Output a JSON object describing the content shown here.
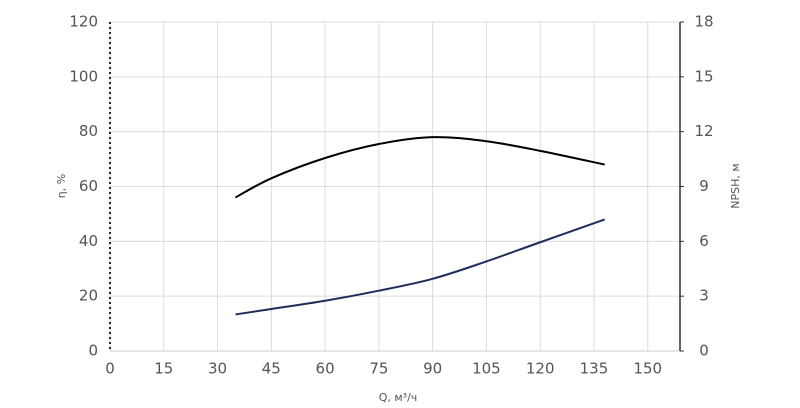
{
  "chart_data": {
    "type": "line",
    "x_label": "Q, м³/ч",
    "y_label": "η, %",
    "y2_label": "NPSH, м",
    "xlim": [
      0,
      159
    ],
    "xticks": [
      0,
      15,
      30,
      45,
      60,
      75,
      90,
      105,
      120,
      135,
      150
    ],
    "ylim": [
      0,
      120
    ],
    "yticks": [
      0,
      20,
      40,
      60,
      80,
      100,
      120
    ],
    "y2lim": [
      0,
      18
    ],
    "y2ticks": [
      0,
      3,
      6,
      9,
      12,
      15,
      18
    ],
    "grid": true,
    "series": [
      {
        "name": "η",
        "color": "#000000",
        "x": [
          35,
          45,
          60,
          75,
          90,
          105,
          120,
          138
        ],
        "values": [
          56,
          63,
          70.4,
          75.5,
          78,
          76.5,
          73,
          68
        ]
      },
      {
        "name": "NPSH",
        "color": "#1f2d5c",
        "axis": "y2",
        "x": [
          35,
          45,
          60,
          75,
          90,
          105,
          120,
          138
        ],
        "values": [
          2.0,
          2.3,
          2.75,
          3.3,
          3.95,
          4.9,
          5.95,
          7.2
        ]
      }
    ]
  }
}
